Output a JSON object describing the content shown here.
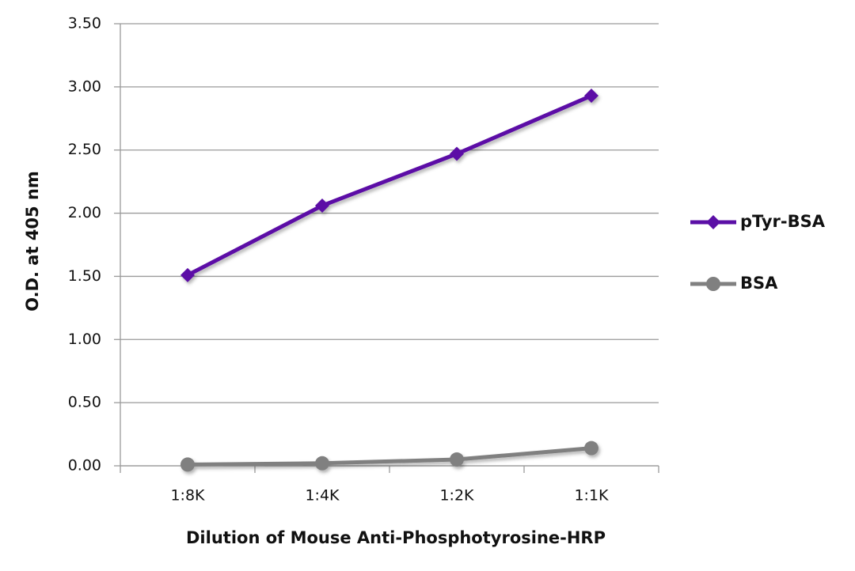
{
  "chart_data": {
    "type": "line",
    "x_label": "Dilution of Mouse Anti-Phosphotyrosine-HRP",
    "y_label": "O.D. at 405 nm",
    "categories": [
      "1:8K",
      "1:4K",
      "1:2K",
      "1:1K"
    ],
    "series": [
      {
        "name": "pTyr-BSA",
        "color": "#5b0fa6",
        "marker": "diamond",
        "values": [
          1.51,
          2.06,
          2.47,
          2.93
        ]
      },
      {
        "name": "BSA",
        "color": "#808080",
        "marker": "circle",
        "values": [
          0.01,
          0.02,
          0.05,
          0.14
        ]
      }
    ],
    "ylim": [
      0,
      3.5
    ],
    "yticks": [
      {
        "value": 0,
        "label": "0.00"
      },
      {
        "value": 0.5,
        "label": "0.50"
      },
      {
        "value": 1,
        "label": "1.00"
      },
      {
        "value": 1.5,
        "label": "1.50"
      },
      {
        "value": 2,
        "label": "2.00"
      },
      {
        "value": 2.5,
        "label": "2.50"
      },
      {
        "value": 3,
        "label": "3.00"
      },
      {
        "value": 3.5,
        "label": "3.50"
      }
    ],
    "grid": true,
    "legend": "right"
  }
}
